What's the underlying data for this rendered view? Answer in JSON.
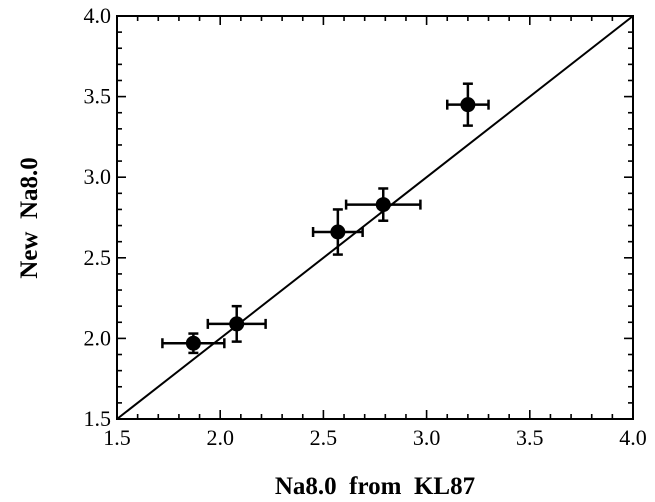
{
  "chart_data": {
    "type": "scatter",
    "title": "",
    "xlabel": "Na8.0  from  KL87",
    "ylabel": "New  Na8.0",
    "xlim": [
      1.5,
      4.0
    ],
    "ylim": [
      1.5,
      4.0
    ],
    "x_ticks": [
      "1.5",
      "2.0",
      "2.5",
      "3.0",
      "3.5",
      "4.0"
    ],
    "y_ticks": [
      "1.5",
      "2.0",
      "2.5",
      "3.0",
      "3.5",
      "4.0"
    ],
    "grid": false,
    "legend": "none",
    "reference_line": {
      "type": "one-to-one",
      "from": [
        1.5,
        1.5
      ],
      "to": [
        4.0,
        4.0
      ]
    },
    "points": [
      {
        "x": 1.87,
        "y": 1.97,
        "xerr": 0.15,
        "yerr": 0.06
      },
      {
        "x": 2.08,
        "y": 2.09,
        "xerr": 0.14,
        "yerr": 0.11
      },
      {
        "x": 2.57,
        "y": 2.66,
        "xerr": 0.12,
        "yerr": 0.14
      },
      {
        "x": 2.79,
        "y": 2.83,
        "xerr": 0.18,
        "yerr": 0.1
      },
      {
        "x": 3.2,
        "y": 3.45,
        "xerr": 0.1,
        "yerr": 0.13
      }
    ],
    "colors": {
      "marker": "#000000",
      "line": "#000000",
      "background": "#ffffff"
    }
  }
}
